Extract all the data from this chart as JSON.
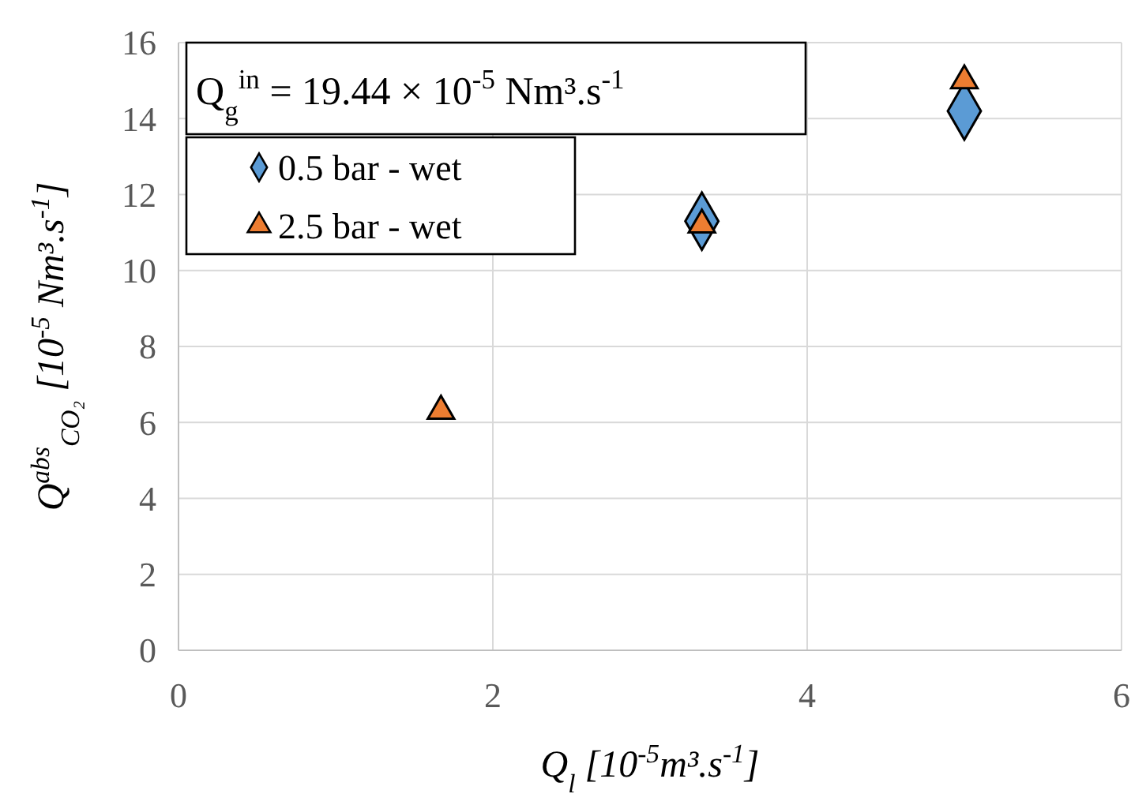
{
  "chart_data": {
    "type": "scatter",
    "xlabel": "Q$_{l}$ [10$^{-5}$m³.s$^{-1}$]",
    "ylabel": "Q$^{abs}$$_{CO₂}$ [10$^{-5}$ Nm³.s$^{-1}$]",
    "annotations": [
      "Q$_{g}$$^{in}$ = 19.44 × 10$^{-5}$ Nm³.s$^{-1}$"
    ],
    "xlim": [
      0,
      6
    ],
    "xticks": [
      0,
      2,
      4,
      6
    ],
    "ylim": [
      0,
      16
    ],
    "yticks": [
      0,
      2,
      4,
      6,
      8,
      10,
      12,
      14,
      16
    ],
    "grid": true,
    "legend": "top left",
    "series": [
      {
        "name": "0.5 bar - wet",
        "color": "#5b9bd5",
        "marker": "diamond",
        "x": [
          3.33,
          5
        ],
        "values": [
          11.3,
          14.2
        ]
      },
      {
        "name": "2.5 bar - wet",
        "color": "#ed7d31",
        "marker": "triangle",
        "x": [
          1.67,
          3.33,
          5
        ],
        "values": [
          6.3,
          11.2,
          15.0
        ]
      }
    ]
  }
}
